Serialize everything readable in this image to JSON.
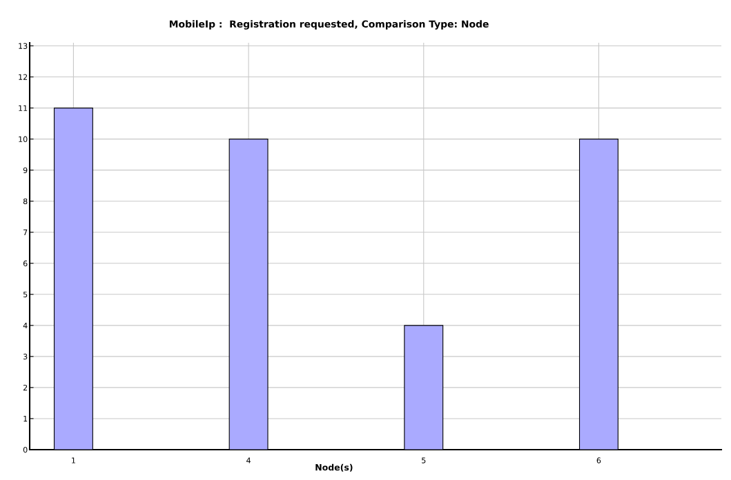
{
  "chart_data": {
    "type": "bar",
    "title": "MobileIp :  Registration requested, Comparison Type: Node",
    "xlabel": "Node(s)",
    "categories": [
      "1",
      "4",
      "5",
      "6"
    ],
    "values": [
      11,
      10,
      4,
      10
    ],
    "color": "#aaaaff",
    "ylim": [
      0,
      13.1
    ],
    "yticks": [
      0,
      1,
      2,
      3,
      4,
      5,
      6,
      7,
      8,
      9,
      10,
      11,
      12,
      13
    ],
    "grid": true
  }
}
